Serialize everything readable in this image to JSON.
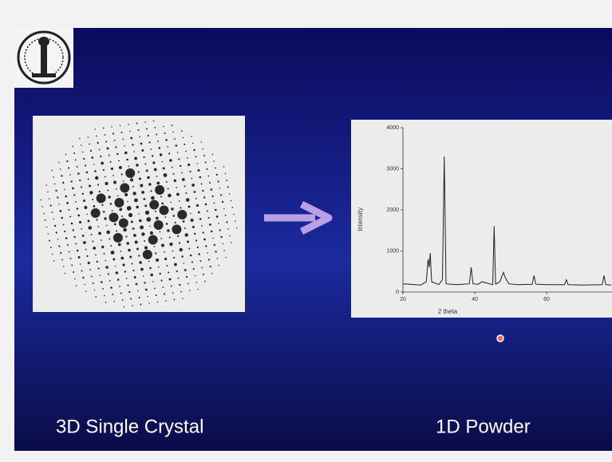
{
  "slide": {
    "left_label": "3D Single Crystal",
    "right_label": "1D Powder"
  },
  "chart_data": {
    "type": "line",
    "xlabel": "2 theta",
    "ylabel": "Intensity",
    "x": [
      20,
      25,
      26.5,
      27,
      27.3,
      27.6,
      28,
      30,
      31,
      31.5,
      32,
      35,
      38.5,
      39,
      39.5,
      41,
      42,
      45,
      45.4,
      45.8,
      47,
      48,
      48.5,
      49.5,
      52,
      56,
      56.5,
      57,
      60,
      65,
      65.5,
      66,
      70,
      75.5,
      76,
      76.5,
      78
    ],
    "values": [
      200,
      170,
      250,
      800,
      600,
      950,
      250,
      180,
      300,
      3300,
      200,
      180,
      200,
      600,
      200,
      190,
      250,
      180,
      1600,
      190,
      250,
      480,
      350,
      200,
      180,
      190,
      400,
      190,
      180,
      180,
      300,
      180,
      170,
      180,
      400,
      180,
      170
    ],
    "color": "#222222",
    "xlim": [
      20,
      80
    ],
    "ylim": [
      0,
      4000
    ],
    "xticks": [
      20,
      40,
      60
    ],
    "yticks": [
      0,
      1000,
      2000,
      3000,
      4000
    ]
  }
}
